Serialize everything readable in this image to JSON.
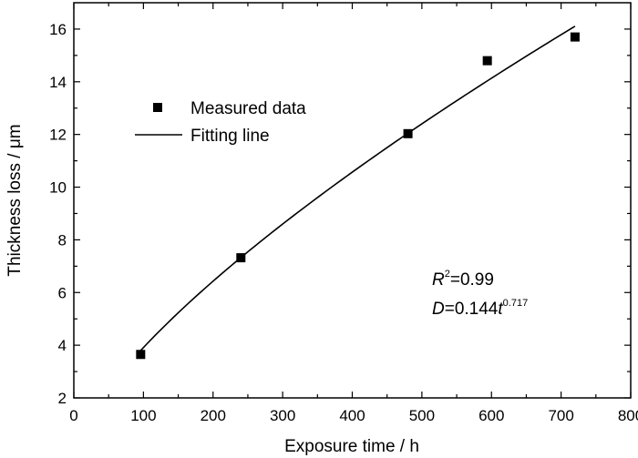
{
  "chart_data": {
    "type": "scatter",
    "title": "",
    "xlabel": "Exposure time / h",
    "ylabel": "Thickness loss / μm",
    "xlim": [
      0,
      800
    ],
    "ylim": [
      2,
      17
    ],
    "xticks": [
      0,
      100,
      200,
      300,
      400,
      500,
      600,
      700,
      800
    ],
    "yticks": [
      2,
      4,
      6,
      8,
      10,
      12,
      14,
      16
    ],
    "legend_position": "top-left",
    "series": [
      {
        "name": "Measured data",
        "kind": "scatter",
        "marker": "square",
        "x": [
          96,
          240,
          480,
          594,
          720
        ],
        "y": [
          3.65,
          7.32,
          12.03,
          14.8,
          15.7
        ]
      },
      {
        "name": "Fitting line",
        "kind": "line",
        "equation": "D = 0.144 t^0.717",
        "coefficient": 0.144,
        "exponent": 0.717,
        "x_range": [
          96,
          720
        ]
      }
    ],
    "annotations": {
      "r2_label": "R",
      "r2_sup": "2",
      "r2_value": "=0.99",
      "eq_var": "D",
      "eq_mid": "=0.144",
      "eq_t": "t",
      "eq_exp": "0.717"
    }
  }
}
